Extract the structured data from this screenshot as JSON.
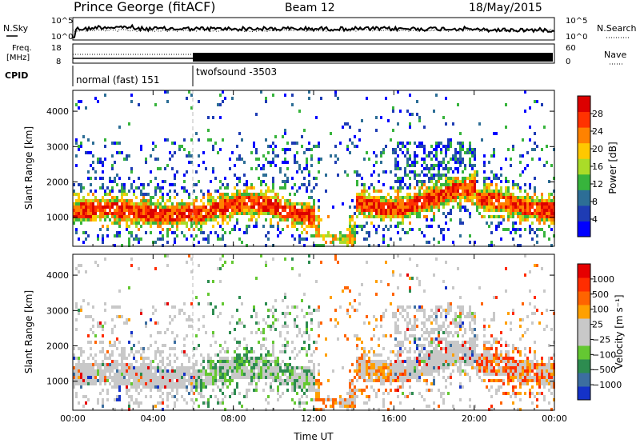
{
  "header": {
    "station": "Prince George (fitACF)",
    "beam": "Beam 12",
    "date": "18/May/2015"
  },
  "top_panels": {
    "nsky_label": "N.Sky",
    "nsearch_label": "N.Search",
    "nsky_ticks": [
      "10^5",
      "10^0"
    ],
    "nsearch_ticks": [
      "10^5",
      "10^0"
    ],
    "freq_label_1": "Freq.",
    "freq_label_2": "[MHz]",
    "freq_ticks": [
      "18",
      "8"
    ],
    "nave_ticks": [
      "60",
      "0"
    ],
    "nave_label": "Nave",
    "cpid_label": "CPID",
    "cpid_segments": [
      {
        "label": "normal (fast) 151",
        "start_h": 0,
        "end_h": 6
      },
      {
        "label": "twofsound -3503",
        "start_h": 6,
        "end_h": 24
      }
    ]
  },
  "chart_data": [
    {
      "type": "heatmap",
      "name": "power",
      "ylabel": "Slant Range [km]",
      "yticks": [
        "4000",
        "3000",
        "2000",
        "1000"
      ],
      "xticks": [
        "00:00",
        "04:00",
        "08:00",
        "12:00",
        "16:00",
        "20:00",
        "00:00"
      ],
      "ylim": [
        180,
        4590
      ],
      "xlim_hours": [
        0,
        24
      ],
      "colorbar": {
        "label": "Power [dB]",
        "ticks": [
          "28",
          "24",
          "20",
          "16",
          "12",
          "8",
          "4"
        ],
        "range": [
          0,
          32
        ],
        "colors": [
          "#0000ff",
          "#1e3cb4",
          "#2d6e96",
          "#37b43c",
          "#aadc28",
          "#ffc800",
          "#ff8200",
          "#ff3200",
          "#dc0000"
        ]
      }
    },
    {
      "type": "heatmap",
      "name": "velocity",
      "ylabel": "Slant Range [km]",
      "xlabel": "Time UT",
      "yticks": [
        "4000",
        "3000",
        "2000",
        "1000"
      ],
      "xticks": [
        "00:00",
        "04:00",
        "08:00",
        "12:00",
        "16:00",
        "20:00",
        "00:00"
      ],
      "ylim": [
        180,
        4590
      ],
      "xlim_hours": [
        0,
        24
      ],
      "colorbar": {
        "label": "Velocity [m s⁻¹]",
        "ticks": [
          "1000",
          "500",
          "100",
          "25",
          "−25",
          "−100",
          "−500",
          "−1000"
        ],
        "colors": [
          "#1432c8",
          "#3c6ea0",
          "#2d8c50",
          "#64c832",
          "#c8c8c8",
          "#c8c8c8",
          "#ffa000",
          "#ff6400",
          "#ff2d00",
          "#e60000"
        ]
      }
    }
  ]
}
